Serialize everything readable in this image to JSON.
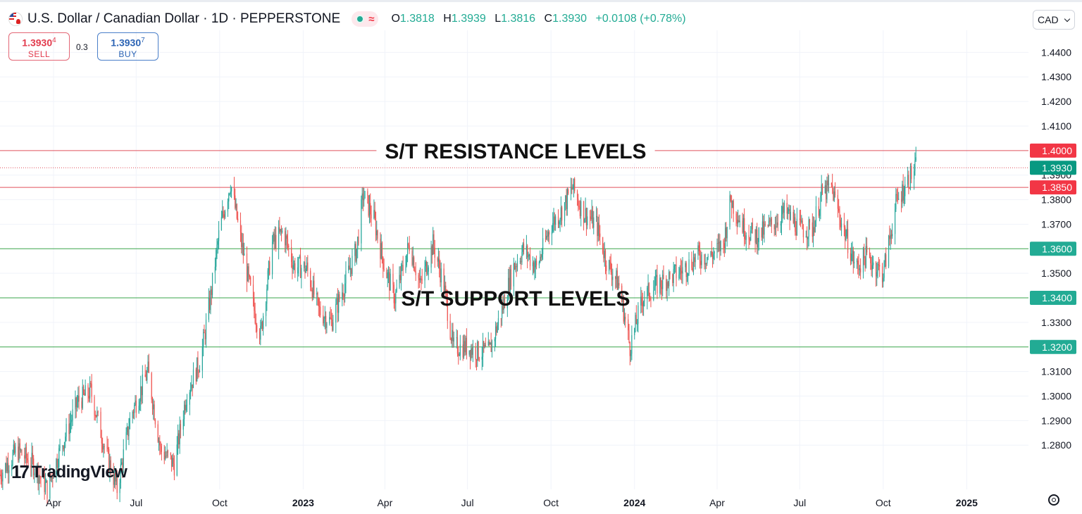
{
  "header": {
    "symbol_title": "U.S. Dollar / Canadian Dollar · 1D · PEPPERSTONE",
    "ohlc": {
      "o_label": "O",
      "o": "1.3818",
      "h_label": "H",
      "h": "1.3939",
      "l_label": "L",
      "l": "1.3816",
      "c_label": "C",
      "c": "1.3930",
      "change": "+0.0108 (+0.78%)"
    },
    "currency": "CAD",
    "flag_icon": "usd-cad-flag-icon",
    "status_icon": "market-status-icon"
  },
  "trade": {
    "sell_price_main": "1.3930",
    "sell_price_pip": "4",
    "sell_label": "SELL",
    "spread": "0.3",
    "buy_price_main": "1.3930",
    "buy_price_pip": "7",
    "buy_label": "BUY"
  },
  "branding": {
    "logo_text": "TradingView"
  },
  "colors": {
    "up": "#22ab94",
    "down": "#f23645",
    "resistance": "#e0505c",
    "support": "#3aa64b",
    "grid": "#f0f3fa",
    "text": "#131722"
  },
  "chart_data": {
    "type": "candlestick",
    "symbol": "USDCAD",
    "interval": "1D",
    "y_ticks": [
      "1.4400",
      "1.4300",
      "1.4200",
      "1.4100",
      "1.3900",
      "1.3800",
      "1.3700",
      "1.3500",
      "1.3300",
      "1.3100",
      "1.3000",
      "1.2900",
      "1.2800"
    ],
    "ylim": [
      1.262,
      1.449
    ],
    "x_ticks": [
      {
        "label": "Apr",
        "date": "2022-04-01"
      },
      {
        "label": "Jul",
        "date": "2022-07-01"
      },
      {
        "label": "Oct",
        "date": "2022-10-01"
      },
      {
        "label": "2023",
        "date": "2023-01-01",
        "bold": true
      },
      {
        "label": "Apr",
        "date": "2023-04-01"
      },
      {
        "label": "Jul",
        "date": "2023-07-01"
      },
      {
        "label": "Oct",
        "date": "2023-10-01"
      },
      {
        "label": "2024",
        "date": "2024-01-01",
        "bold": true
      },
      {
        "label": "Apr",
        "date": "2024-04-01"
      },
      {
        "label": "Jul",
        "date": "2024-07-01"
      },
      {
        "label": "Oct",
        "date": "2024-10-01"
      },
      {
        "label": "2025",
        "date": "2025-01-01",
        "bold": true
      }
    ],
    "xlim": [
      "2022-02-01",
      "2025-03-10"
    ],
    "last_date": "2024-11-06",
    "price_path": [
      [
        "2022-02-01",
        1.268
      ],
      [
        "2022-02-20",
        1.278
      ],
      [
        "2022-03-10",
        1.272
      ],
      [
        "2022-03-25",
        1.262
      ],
      [
        "2022-04-10",
        1.28
      ],
      [
        "2022-04-28",
        1.298
      ],
      [
        "2022-05-12",
        1.302
      ],
      [
        "2022-05-28",
        1.278
      ],
      [
        "2022-06-10",
        1.262
      ],
      [
        "2022-06-25",
        1.292
      ],
      [
        "2022-07-14",
        1.31
      ],
      [
        "2022-07-28",
        1.278
      ],
      [
        "2022-08-12",
        1.272
      ],
      [
        "2022-08-25",
        1.3
      ],
      [
        "2022-09-10",
        1.315
      ],
      [
        "2022-09-20",
        1.338
      ],
      [
        "2022-10-01",
        1.368
      ],
      [
        "2022-10-13",
        1.387
      ],
      [
        "2022-10-25",
        1.362
      ],
      [
        "2022-11-08",
        1.335
      ],
      [
        "2022-11-15",
        1.325
      ],
      [
        "2022-11-28",
        1.362
      ],
      [
        "2022-12-10",
        1.367
      ],
      [
        "2022-12-22",
        1.353
      ],
      [
        "2023-01-05",
        1.352
      ],
      [
        "2023-01-18",
        1.335
      ],
      [
        "2023-02-01",
        1.33
      ],
      [
        "2023-02-15",
        1.345
      ],
      [
        "2023-03-01",
        1.36
      ],
      [
        "2023-03-08",
        1.382
      ],
      [
        "2023-03-20",
        1.372
      ],
      [
        "2023-04-01",
        1.352
      ],
      [
        "2023-04-12",
        1.34
      ],
      [
        "2023-04-28",
        1.362
      ],
      [
        "2023-05-10",
        1.345
      ],
      [
        "2023-05-24",
        1.362
      ],
      [
        "2023-06-05",
        1.345
      ],
      [
        "2023-06-15",
        1.32
      ],
      [
        "2023-07-01",
        1.32
      ],
      [
        "2023-07-12",
        1.318
      ],
      [
        "2023-07-25",
        1.318
      ],
      [
        "2023-08-08",
        1.335
      ],
      [
        "2023-08-20",
        1.352
      ],
      [
        "2023-09-01",
        1.36
      ],
      [
        "2023-09-15",
        1.352
      ],
      [
        "2023-10-01",
        1.37
      ],
      [
        "2023-10-12",
        1.375
      ],
      [
        "2023-10-25",
        1.385
      ],
      [
        "2023-11-05",
        1.375
      ],
      [
        "2023-11-20",
        1.37
      ],
      [
        "2023-12-01",
        1.355
      ],
      [
        "2023-12-15",
        1.345
      ],
      [
        "2023-12-27",
        1.32
      ],
      [
        "2024-01-10",
        1.34
      ],
      [
        "2024-01-25",
        1.345
      ],
      [
        "2024-02-08",
        1.348
      ],
      [
        "2024-02-25",
        1.352
      ],
      [
        "2024-03-10",
        1.357
      ],
      [
        "2024-03-25",
        1.357
      ],
      [
        "2024-04-08",
        1.362
      ],
      [
        "2024-04-16",
        1.38
      ],
      [
        "2024-05-01",
        1.368
      ],
      [
        "2024-05-15",
        1.365
      ],
      [
        "2024-06-01",
        1.37
      ],
      [
        "2024-06-15",
        1.375
      ],
      [
        "2024-07-01",
        1.368
      ],
      [
        "2024-07-15",
        1.368
      ],
      [
        "2024-07-25",
        1.382
      ],
      [
        "2024-08-05",
        1.385
      ],
      [
        "2024-08-15",
        1.372
      ],
      [
        "2024-09-01",
        1.352
      ],
      [
        "2024-09-12",
        1.357
      ],
      [
        "2024-09-25",
        1.352
      ],
      [
        "2024-10-01",
        1.35
      ],
      [
        "2024-10-15",
        1.378
      ],
      [
        "2024-10-28",
        1.388
      ],
      [
        "2024-11-06",
        1.393
      ]
    ],
    "levels": [
      {
        "name": "resistance",
        "value": "1.4000",
        "color": "#f23645"
      },
      {
        "name": "resistance",
        "value": "1.3850",
        "color": "#f23645"
      },
      {
        "name": "support",
        "value": "1.3600",
        "color": "#22ab94"
      },
      {
        "name": "support",
        "value": "1.3400",
        "color": "#22ab94"
      },
      {
        "name": "support",
        "value": "1.3200",
        "color": "#22ab94"
      }
    ],
    "last_price": {
      "value": "1.3930",
      "color": "#089981"
    },
    "annotations": [
      "S/T RESISTANCE LEVELS",
      "S/T SUPPORT LEVELS"
    ]
  }
}
